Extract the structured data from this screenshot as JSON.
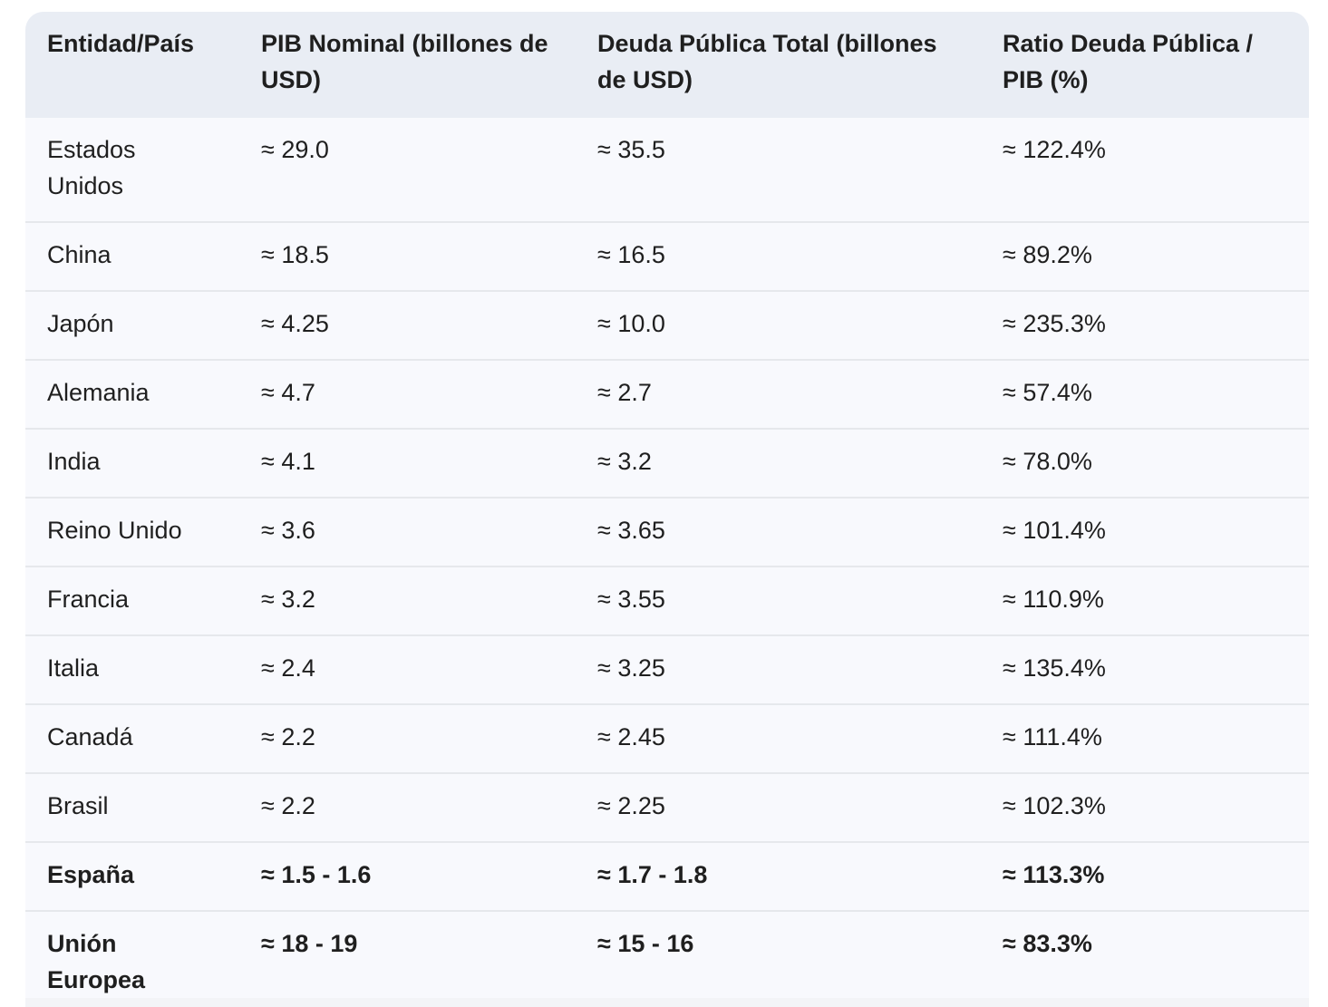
{
  "table": {
    "headers": [
      "Entidad/País",
      "PIB Nominal (billones de USD)",
      "Deuda Pública Total (billones de USD)",
      "Ratio Deuda Pública / PIB (%)"
    ],
    "rows": [
      {
        "entity": "Estados Unidos",
        "gdp": "≈ 29.0",
        "debt": "≈ 35.5",
        "ratio": "≈ 122.4%",
        "bold": false
      },
      {
        "entity": "China",
        "gdp": "≈ 18.5",
        "debt": "≈ 16.5",
        "ratio": "≈ 89.2%",
        "bold": false
      },
      {
        "entity": "Japón",
        "gdp": "≈ 4.25",
        "debt": "≈ 10.0",
        "ratio": "≈ 235.3%",
        "bold": false
      },
      {
        "entity": "Alemania",
        "gdp": "≈ 4.7",
        "debt": "≈ 2.7",
        "ratio": "≈ 57.4%",
        "bold": false
      },
      {
        "entity": "India",
        "gdp": "≈ 4.1",
        "debt": "≈ 3.2",
        "ratio": "≈ 78.0%",
        "bold": false
      },
      {
        "entity": "Reino Unido",
        "gdp": "≈ 3.6",
        "debt": "≈ 3.65",
        "ratio": "≈ 101.4%",
        "bold": false
      },
      {
        "entity": "Francia",
        "gdp": "≈ 3.2",
        "debt": "≈ 3.55",
        "ratio": "≈ 110.9%",
        "bold": false
      },
      {
        "entity": "Italia",
        "gdp": "≈ 2.4",
        "debt": "≈ 3.25",
        "ratio": "≈ 135.4%",
        "bold": false
      },
      {
        "entity": "Canadá",
        "gdp": "≈ 2.2",
        "debt": "≈ 2.45",
        "ratio": "≈ 111.4%",
        "bold": false
      },
      {
        "entity": "Brasil",
        "gdp": "≈ 2.2",
        "debt": "≈ 2.25",
        "ratio": "≈ 102.3%",
        "bold": false
      },
      {
        "entity": "España",
        "gdp": "≈ 1.5 - 1.6",
        "debt": "≈ 1.7 - 1.8",
        "ratio": "≈ 113.3%",
        "bold": true
      },
      {
        "entity": "Unión Europea",
        "gdp": "≈ 18 - 19",
        "debt": "≈ 15 - 16",
        "ratio": "≈ 83.3%",
        "bold": true
      }
    ]
  },
  "colors": {
    "header_bg": "#e9edf4",
    "body_bg": "#f8f9fd",
    "row_divider": "#e6e8ec",
    "text": "#1f1f1f"
  }
}
